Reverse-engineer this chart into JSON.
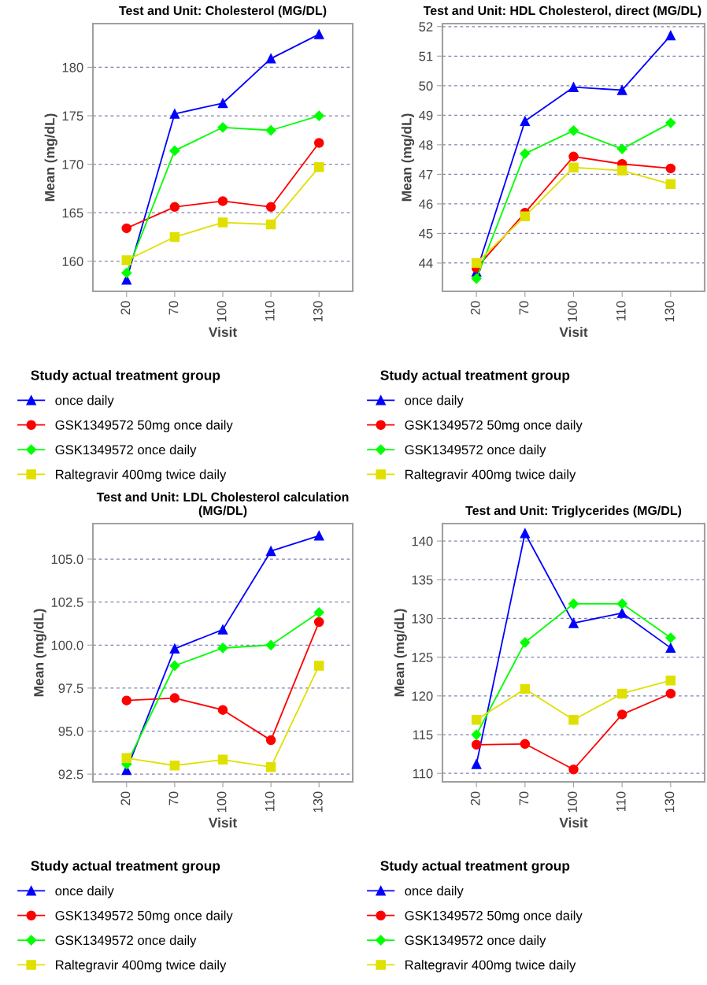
{
  "chart_data": [
    {
      "type": "line",
      "title": "Test and Unit: Cholesterol (MG/DL)",
      "xlabel": "Visit",
      "ylabel": "Mean (mg/dL)",
      "legend_title": "Study actual treatment group",
      "legend": "bottom",
      "grid": "y",
      "categories": [
        "20",
        "70",
        "100",
        "110",
        "130"
      ],
      "ylim": [
        156.9,
        184.5
      ],
      "yticks": [
        160,
        165,
        170,
        175,
        180
      ],
      "series": [
        {
          "name": "once daily",
          "color": "#0000ff",
          "marker": "triangle",
          "values": [
            158.1,
            175.2,
            176.3,
            180.9,
            183.4
          ]
        },
        {
          "name": "GSK1349572 50mg once daily",
          "color": "#ff0000",
          "marker": "circle",
          "values": [
            163.4,
            165.6,
            166.2,
            165.6,
            172.2
          ]
        },
        {
          "name": "GSK1349572 once daily",
          "color": "#00ff00",
          "marker": "diamond",
          "values": [
            158.8,
            171.4,
            173.8,
            173.5,
            175.0
          ]
        },
        {
          "name": "Raltegravir 400mg twice daily",
          "color": "#e0e000",
          "marker": "square",
          "values": [
            160.1,
            162.5,
            164.0,
            163.8,
            169.7
          ]
        }
      ]
    },
    {
      "type": "line",
      "title": "Test and Unit: HDL Cholesterol, direct (MG/DL)",
      "xlabel": "Visit",
      "ylabel": "Mean (mg/dL)",
      "legend_title": "Study actual treatment group",
      "legend": "bottom",
      "grid": "y",
      "categories": [
        "20",
        "70",
        "100",
        "110",
        "130"
      ],
      "ylim": [
        43.04,
        52.1
      ],
      "yticks": [
        44,
        45,
        46,
        47,
        48,
        49,
        50,
        51,
        52
      ],
      "series": [
        {
          "name": "once daily",
          "color": "#0000ff",
          "marker": "triangle",
          "values": [
            43.7,
            48.8,
            49.95,
            49.85,
            51.7
          ]
        },
        {
          "name": "GSK1349572 50mg once daily",
          "color": "#ff0000",
          "marker": "circle",
          "values": [
            43.83,
            45.7,
            47.6,
            47.35,
            47.2
          ]
        },
        {
          "name": "GSK1349572 once daily",
          "color": "#00ff00",
          "marker": "diamond",
          "values": [
            43.47,
            47.7,
            48.48,
            47.86,
            48.74
          ]
        },
        {
          "name": "Raltegravir 400mg twice daily",
          "color": "#e0e000",
          "marker": "square",
          "values": [
            44.0,
            45.58,
            47.23,
            47.13,
            46.67
          ]
        }
      ]
    },
    {
      "type": "line",
      "title": "Test and Unit: LDL Cholesterol calculation\n(MG/DL)",
      "xlabel": "Visit",
      "ylabel": "Mean (mg/dL)",
      "legend_title": "Study actual treatment group",
      "legend": "bottom",
      "grid": "y",
      "categories": [
        "20",
        "70",
        "100",
        "110",
        "130"
      ],
      "ylim": [
        92.05,
        107.06
      ],
      "yticks": [
        {
          "value": 92.5,
          "label": "92.5"
        },
        {
          "value": 95,
          "label": "95.0"
        },
        {
          "value": 97.5,
          "label": "97.5"
        },
        {
          "value": 100,
          "label": "100.0"
        },
        {
          "value": 102.5,
          "label": "102.5"
        },
        {
          "value": 105,
          "label": "105.0"
        }
      ],
      "series": [
        {
          "name": "once daily",
          "color": "#0000ff",
          "marker": "triangle",
          "values": [
            92.74,
            99.79,
            100.9,
            105.46,
            106.36
          ]
        },
        {
          "name": "GSK1349572 50mg once daily",
          "color": "#ff0000",
          "marker": "circle",
          "values": [
            96.78,
            96.92,
            96.23,
            94.47,
            101.34
          ]
        },
        {
          "name": "GSK1349572 once daily",
          "color": "#00ff00",
          "marker": "diamond",
          "values": [
            93.08,
            98.8,
            99.83,
            100.0,
            101.9
          ]
        },
        {
          "name": "Raltegravir 400mg twice daily",
          "color": "#e0e000",
          "marker": "square",
          "values": [
            93.43,
            93.0,
            93.34,
            92.91,
            98.8
          ]
        }
      ]
    },
    {
      "type": "line",
      "title": "Test and Unit: Triglycerides (MG/DL)",
      "xlabel": "Visit",
      "ylabel": "Mean (mg/dL)",
      "legend_title": "Study actual treatment group",
      "legend": "bottom",
      "grid": "y",
      "categories": [
        "20",
        "70",
        "100",
        "110",
        "130"
      ],
      "ylim": [
        108.9,
        142.25
      ],
      "yticks": [
        110,
        115,
        120,
        125,
        130,
        135,
        140
      ],
      "series": [
        {
          "name": "once daily",
          "color": "#0000ff",
          "marker": "triangle",
          "values": [
            111.2,
            141.0,
            129.4,
            130.7,
            126.2
          ]
        },
        {
          "name": "GSK1349572 50mg once daily",
          "color": "#ff0000",
          "marker": "circle",
          "values": [
            113.7,
            113.8,
            110.5,
            117.6,
            120.3
          ]
        },
        {
          "name": "GSK1349572 once daily",
          "color": "#00ff00",
          "marker": "diamond",
          "values": [
            115.0,
            126.9,
            131.9,
            131.9,
            127.5
          ]
        },
        {
          "name": "Raltegravir 400mg twice daily",
          "color": "#e0e000",
          "marker": "square",
          "values": [
            116.9,
            120.9,
            116.9,
            120.3,
            122.0
          ]
        }
      ]
    }
  ]
}
